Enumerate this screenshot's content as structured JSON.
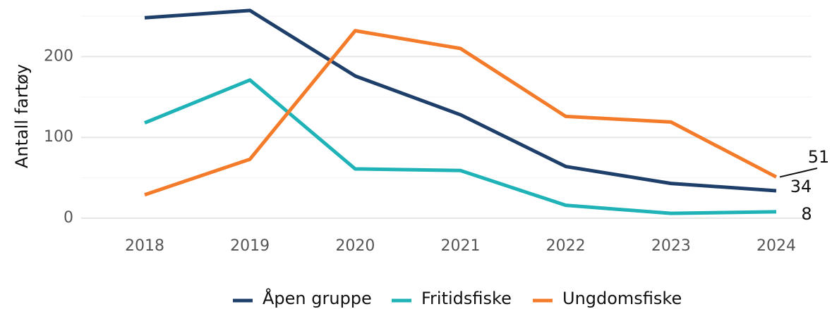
{
  "chart_data": {
    "type": "line",
    "y_label": "Antall fartøy",
    "categories": [
      "2018",
      "2019",
      "2020",
      "2021",
      "2022",
      "2023",
      "2024"
    ],
    "series": [
      {
        "name": "Åpen gruppe",
        "color": "#1f3f6b",
        "values": [
          248,
          257,
          176,
          128,
          64,
          43,
          34
        ]
      },
      {
        "name": "Fritidsfiske",
        "color": "#1fb3b8",
        "values": [
          118,
          171,
          61,
          59,
          16,
          6,
          8
        ]
      },
      {
        "name": "Ungdomsfiske",
        "color": "#f47b2a",
        "values": [
          29,
          73,
          232,
          210,
          126,
          119,
          51
        ]
      }
    ],
    "ylim": [
      -10,
      270
    ],
    "yticks": [
      0,
      100,
      200
    ],
    "grid": true,
    "legend": "bottom"
  }
}
